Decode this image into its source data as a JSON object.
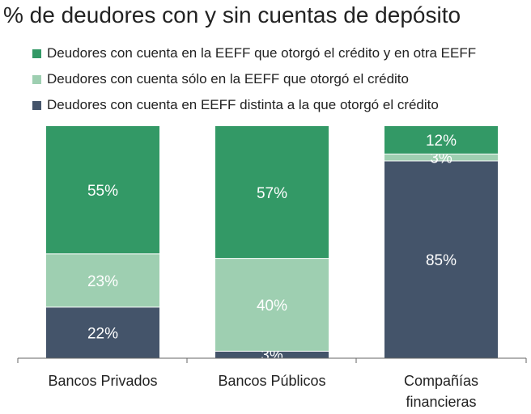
{
  "chart_data": {
    "type": "bar",
    "stacked": true,
    "percent": true,
    "title": "% de deudores con y sin cuentas de depósito",
    "categories": [
      "Bancos Privados",
      "Bancos Públicos",
      "Compañías financieras"
    ],
    "series": [
      {
        "name": "Deudores con cuenta en EEFF distinta a la que otorgó el crédito",
        "color": "#44546a",
        "values": [
          22,
          3,
          85
        ]
      },
      {
        "name": "Deudores con cuenta sólo en la EEFF que otorgó el crédito",
        "color": "#9ecfb1",
        "values": [
          23,
          40,
          3
        ]
      },
      {
        "name": "Deudores con cuenta en la EEFF que otorgó el crédito y en otra EEFF",
        "color": "#339966",
        "values": [
          55,
          57,
          12
        ]
      }
    ],
    "legend_order": [
      2,
      1,
      0
    ],
    "ylim": [
      0,
      100
    ],
    "xlabel": "",
    "ylabel": "",
    "label_suffix": "%"
  }
}
